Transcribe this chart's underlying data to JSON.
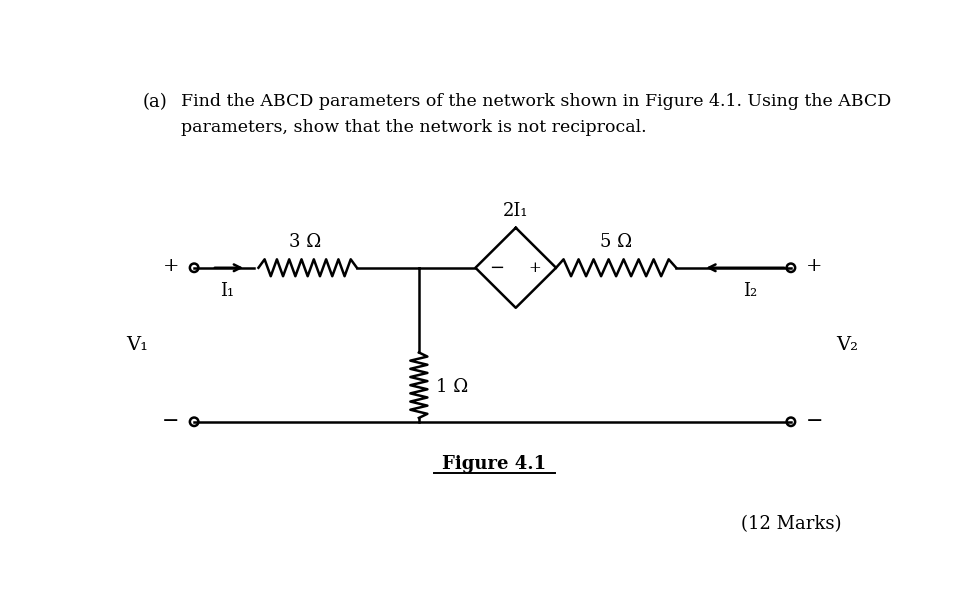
{
  "bg_color": "#ffffff",
  "text_color": "#000000",
  "figure_label": "Figure 4.1",
  "marks_text": "(12 Marks)",
  "resistor_3_label": "3 Ω",
  "resistor_5_label": "5 Ω",
  "resistor_1_label": "1 Ω",
  "source_label": "2I₁",
  "I1_label": "I₁",
  "I2_label": "I₂",
  "V1_label": "V₁",
  "V2_label": "V₂",
  "plus_left": "+",
  "minus_left": "−",
  "plus_right": "+",
  "minus_right": "−",
  "source_plus": "+",
  "source_minus": "−",
  "question_a": "(a)",
  "question_line1": "Find the ABCD parameters of the network shown in Figure 4.1. Using the ABCD",
  "question_line2": "parameters, show that the network is not reciprocal."
}
